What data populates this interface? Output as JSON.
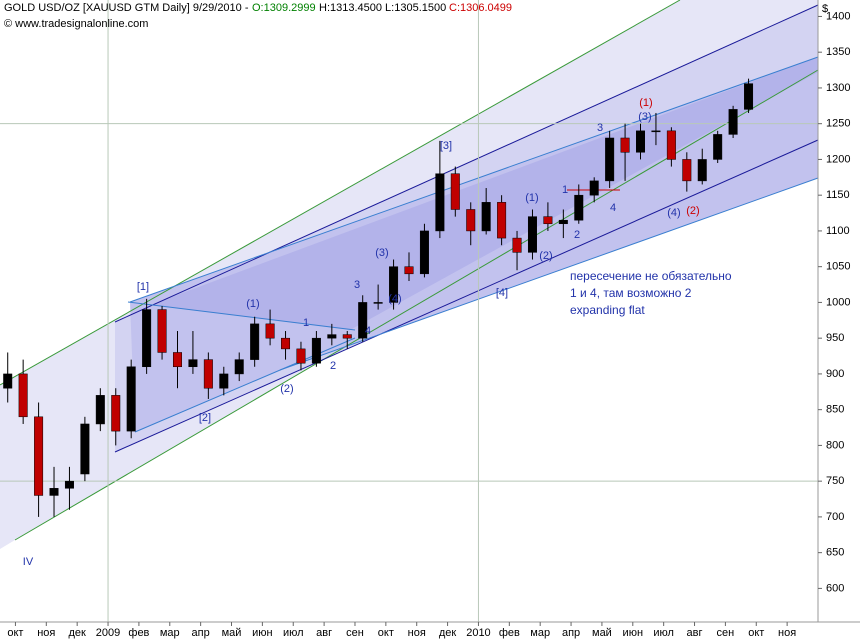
{
  "chart_data": {
    "type": "candlestick",
    "title": "GOLD USD/OZ [XAUUSD GTM  Daily] 9/29/2010 -",
    "header_open": "O:1309.2999",
    "header_high_low": "H:1313.4500 L:1305.1500",
    "header_close": "C:1306.0499",
    "subtitle": "© www.tradesignalonline.com",
    "y_unit": "$",
    "open": [
      880,
      900,
      840,
      730,
      740,
      760,
      830,
      870,
      820,
      910,
      990,
      930,
      910,
      920,
      880,
      900,
      920,
      970,
      950,
      935,
      915,
      950,
      955,
      950,
      1000,
      1000,
      1050,
      1040,
      1100,
      1180,
      1130,
      1100,
      1140,
      1090,
      1070,
      1120,
      1110,
      1115,
      1150,
      1170,
      1230,
      1210,
      1240,
      1240,
      1200,
      1170,
      1200,
      1235,
      1270
    ],
    "high": [
      930,
      920,
      860,
      770,
      770,
      840,
      880,
      880,
      920,
      1005,
      995,
      960,
      960,
      930,
      910,
      930,
      980,
      990,
      960,
      945,
      960,
      970,
      960,
      1010,
      1025,
      1060,
      1070,
      1110,
      1226,
      1190,
      1140,
      1160,
      1150,
      1100,
      1130,
      1140,
      1130,
      1165,
      1175,
      1240,
      1250,
      1250,
      1265,
      1245,
      1210,
      1215,
      1240,
      1275,
      1313
    ],
    "low": [
      860,
      830,
      700,
      700,
      710,
      750,
      820,
      800,
      810,
      900,
      920,
      880,
      900,
      865,
      870,
      890,
      910,
      940,
      920,
      905,
      910,
      940,
      935,
      945,
      990,
      990,
      1030,
      1035,
      1090,
      1120,
      1080,
      1095,
      1080,
      1045,
      1060,
      1100,
      1090,
      1110,
      1140,
      1160,
      1170,
      1200,
      1220,
      1190,
      1155,
      1165,
      1195,
      1230,
      1265
    ],
    "close": [
      900,
      840,
      730,
      740,
      750,
      830,
      870,
      820,
      910,
      990,
      930,
      910,
      920,
      880,
      900,
      920,
      970,
      950,
      935,
      915,
      950,
      955,
      950,
      1000,
      1000,
      1050,
      1040,
      1100,
      1180,
      1130,
      1100,
      1140,
      1090,
      1070,
      1120,
      1110,
      1115,
      1150,
      1170,
      1230,
      1210,
      1240,
      1240,
      1200,
      1170,
      1200,
      1235,
      1270,
      1306
    ],
    "up_color": "#000000",
    "down_color": "#c00000",
    "xlim": [
      0,
      53
    ],
    "xticks": [
      {
        "value": 1,
        "label": "окт"
      },
      {
        "value": 3,
        "label": "ноя"
      },
      {
        "value": 5,
        "label": "дек"
      },
      {
        "value": 7,
        "label": "2009"
      },
      {
        "value": 9,
        "label": "фев"
      },
      {
        "value": 11,
        "label": "мар"
      },
      {
        "value": 13,
        "label": "апр"
      },
      {
        "value": 15,
        "label": "май"
      },
      {
        "value": 17,
        "label": "июн"
      },
      {
        "value": 19,
        "label": "июл"
      },
      {
        "value": 21,
        "label": "авг"
      },
      {
        "value": 23,
        "label": "сен"
      },
      {
        "value": 25,
        "label": "окт"
      },
      {
        "value": 27,
        "label": "ноя"
      },
      {
        "value": 29,
        "label": "дек"
      },
      {
        "value": 31,
        "label": "2010"
      },
      {
        "value": 33,
        "label": "фев"
      },
      {
        "value": 35,
        "label": "мар"
      },
      {
        "value": 37,
        "label": "апр"
      },
      {
        "value": 39,
        "label": "май"
      },
      {
        "value": 41,
        "label": "июн"
      },
      {
        "value": 43,
        "label": "июл"
      },
      {
        "value": 45,
        "label": "авг"
      },
      {
        "value": 47,
        "label": "сен"
      },
      {
        "value": 49,
        "label": "окт"
      },
      {
        "value": 51,
        "label": "ноя"
      }
    ],
    "xgrid": [
      7,
      31
    ],
    "ylim": [
      553,
      1423
    ],
    "yticks": [
      600,
      650,
      700,
      750,
      800,
      850,
      900,
      950,
      1000,
      1050,
      1100,
      1150,
      1200,
      1250,
      1300,
      1350,
      1400
    ],
    "ygrid": [
      750,
      1250
    ],
    "annotations": [
      {
        "text": "[1]",
        "color": "#2233aa"
      },
      {
        "text": "[2]",
        "color": "#2233aa"
      },
      {
        "text": "[3]",
        "color": "#2233aa"
      },
      {
        "text": "[4]",
        "color": "#2233aa"
      },
      {
        "text": "IV",
        "color": "#2233aa"
      },
      {
        "text": "(1)",
        "color": "#2233aa"
      },
      {
        "text": "(2)",
        "color": "#2233aa"
      },
      {
        "text": "1",
        "color": "#2233aa"
      },
      {
        "text": "2",
        "color": "#2233aa"
      },
      {
        "text": "3",
        "color": "#2233aa"
      },
      {
        "text": "4",
        "color": "#2233aa"
      },
      {
        "text": "(3)",
        "color": "#2233aa"
      },
      {
        "text": "(4)",
        "color": "#2233aa"
      },
      {
        "text": "(1)",
        "color": "#2233aa"
      },
      {
        "text": "(2)",
        "color": "#2233aa"
      },
      {
        "text": "1",
        "color": "#2233aa"
      },
      {
        "text": "2",
        "color": "#2233aa"
      },
      {
        "text": "3",
        "color": "#2233aa"
      },
      {
        "text": "4",
        "color": "#2233aa"
      },
      {
        "text": "(3)",
        "color": "#2233aa"
      },
      {
        "text": "(4)",
        "color": "#2233aa"
      },
      {
        "text": "(1)",
        "color": "#cc0000"
      },
      {
        "text": "(2)",
        "color": "#cc0000"
      }
    ],
    "note": [
      "пересечение не обязательно",
      "1 и 4, там возможно 2",
      "expanding flat"
    ]
  }
}
